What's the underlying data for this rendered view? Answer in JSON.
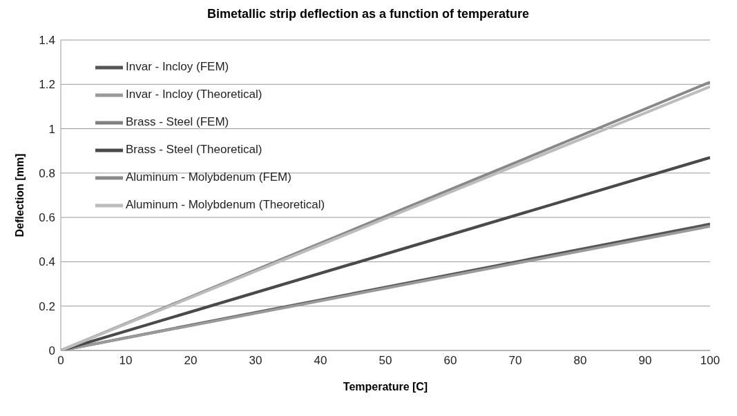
{
  "chart_data": {
    "type": "line",
    "title": "Bimetallic strip deflection as a function of temperature",
    "xlabel": "Temperature [C]",
    "ylabel": "Deflection [mm]",
    "x": [
      0,
      100
    ],
    "series": [
      {
        "name": "Invar - Incloy (FEM)",
        "color": "#555555",
        "values": [
          0,
          0.57
        ]
      },
      {
        "name": "Invar - Incloy (Theoretical)",
        "color": "#9a9a9a",
        "values": [
          0,
          0.56
        ]
      },
      {
        "name": "Brass - Steel (FEM)",
        "color": "#7f7f7f",
        "values": [
          0,
          0.87
        ]
      },
      {
        "name": "Brass - Steel (Theoretical)",
        "color": "#4a4a4a",
        "values": [
          0,
          0.87
        ]
      },
      {
        "name": "Aluminum - Molybdenum (FEM)",
        "color": "#888888",
        "values": [
          0,
          1.21
        ]
      },
      {
        "name": "Aluminum - Molybdenum (Theoretical)",
        "color": "#bcbcbc",
        "values": [
          0,
          1.19
        ]
      }
    ],
    "xlim": [
      0,
      100
    ],
    "xticks": [
      0,
      10,
      20,
      30,
      40,
      50,
      60,
      70,
      80,
      90,
      100
    ],
    "ylim": [
      0,
      1.4
    ],
    "yticks": [
      0,
      0.2,
      0.4,
      0.6,
      0.8,
      1,
      1.2,
      1.4
    ],
    "grid": "y",
    "legend": "top left",
    "marker": "none",
    "line_style": "solid"
  }
}
